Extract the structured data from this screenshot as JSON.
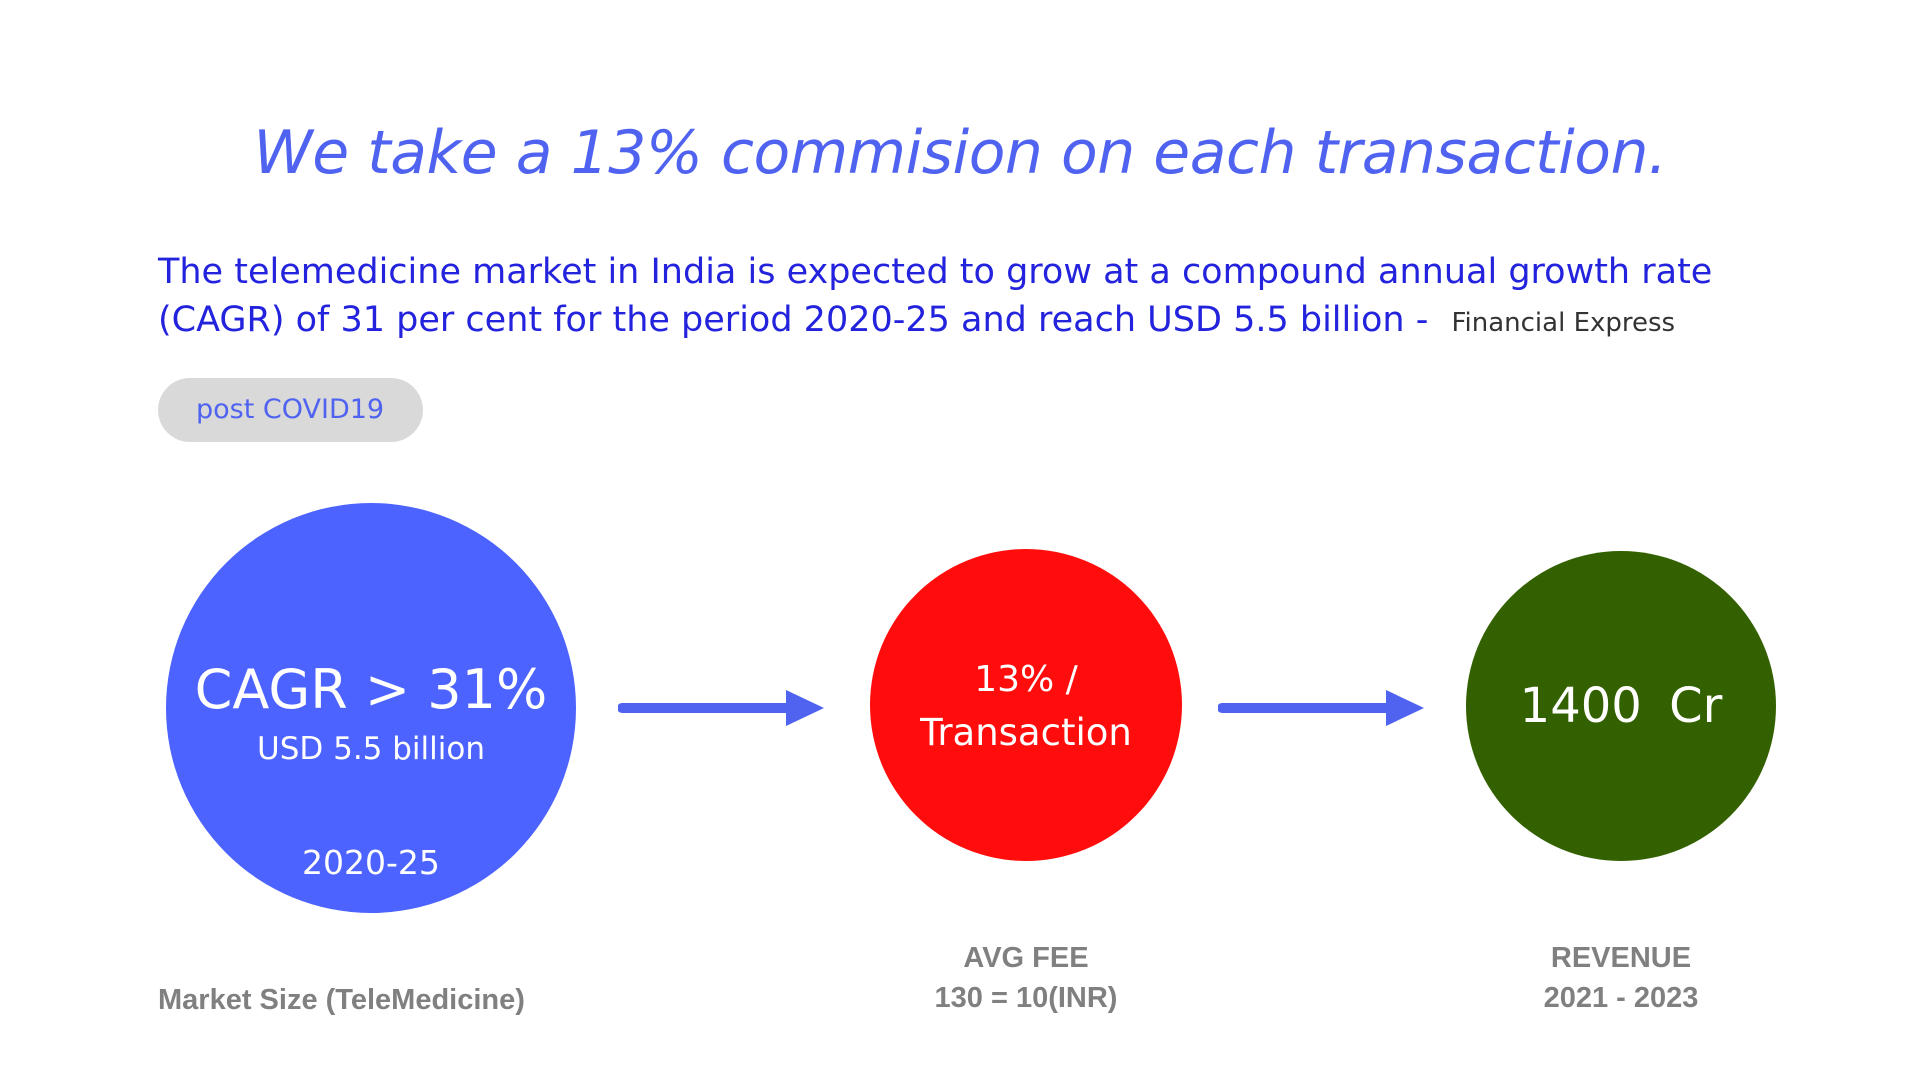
{
  "headline": "We take a 13% commision on each transaction.",
  "quote": {
    "text": "The telemedicine market in India is expected to grow at a compound annual growth rate (CAGR) of 31 per cent for the period 2020-25 and reach USD 5.5 billion - ",
    "source": "Financial Express"
  },
  "tag": "post COVID19",
  "market": {
    "headline": "CAGR > 31%",
    "value": "USD 5.5 billion",
    "period": "2020-25",
    "caption": "Market Size (TeleMedicine)",
    "color": "#4c63ff"
  },
  "fee": {
    "line1": "13% /",
    "line2": "Transaction",
    "caption_title": "AVG FEE",
    "caption_value": "130 = 10(INR)",
    "color": "#ff0c0c"
  },
  "revenue": {
    "value": "1400  Cr",
    "caption_title": "REVENUE",
    "caption_value": "2021 - 2023",
    "color": "#336100"
  },
  "colors": {
    "accent": "#4f63f0",
    "quote_text": "#2323dd",
    "arrow": "#4f63f0",
    "caption": "#808080",
    "pill_bg": "#d9d9d9"
  }
}
